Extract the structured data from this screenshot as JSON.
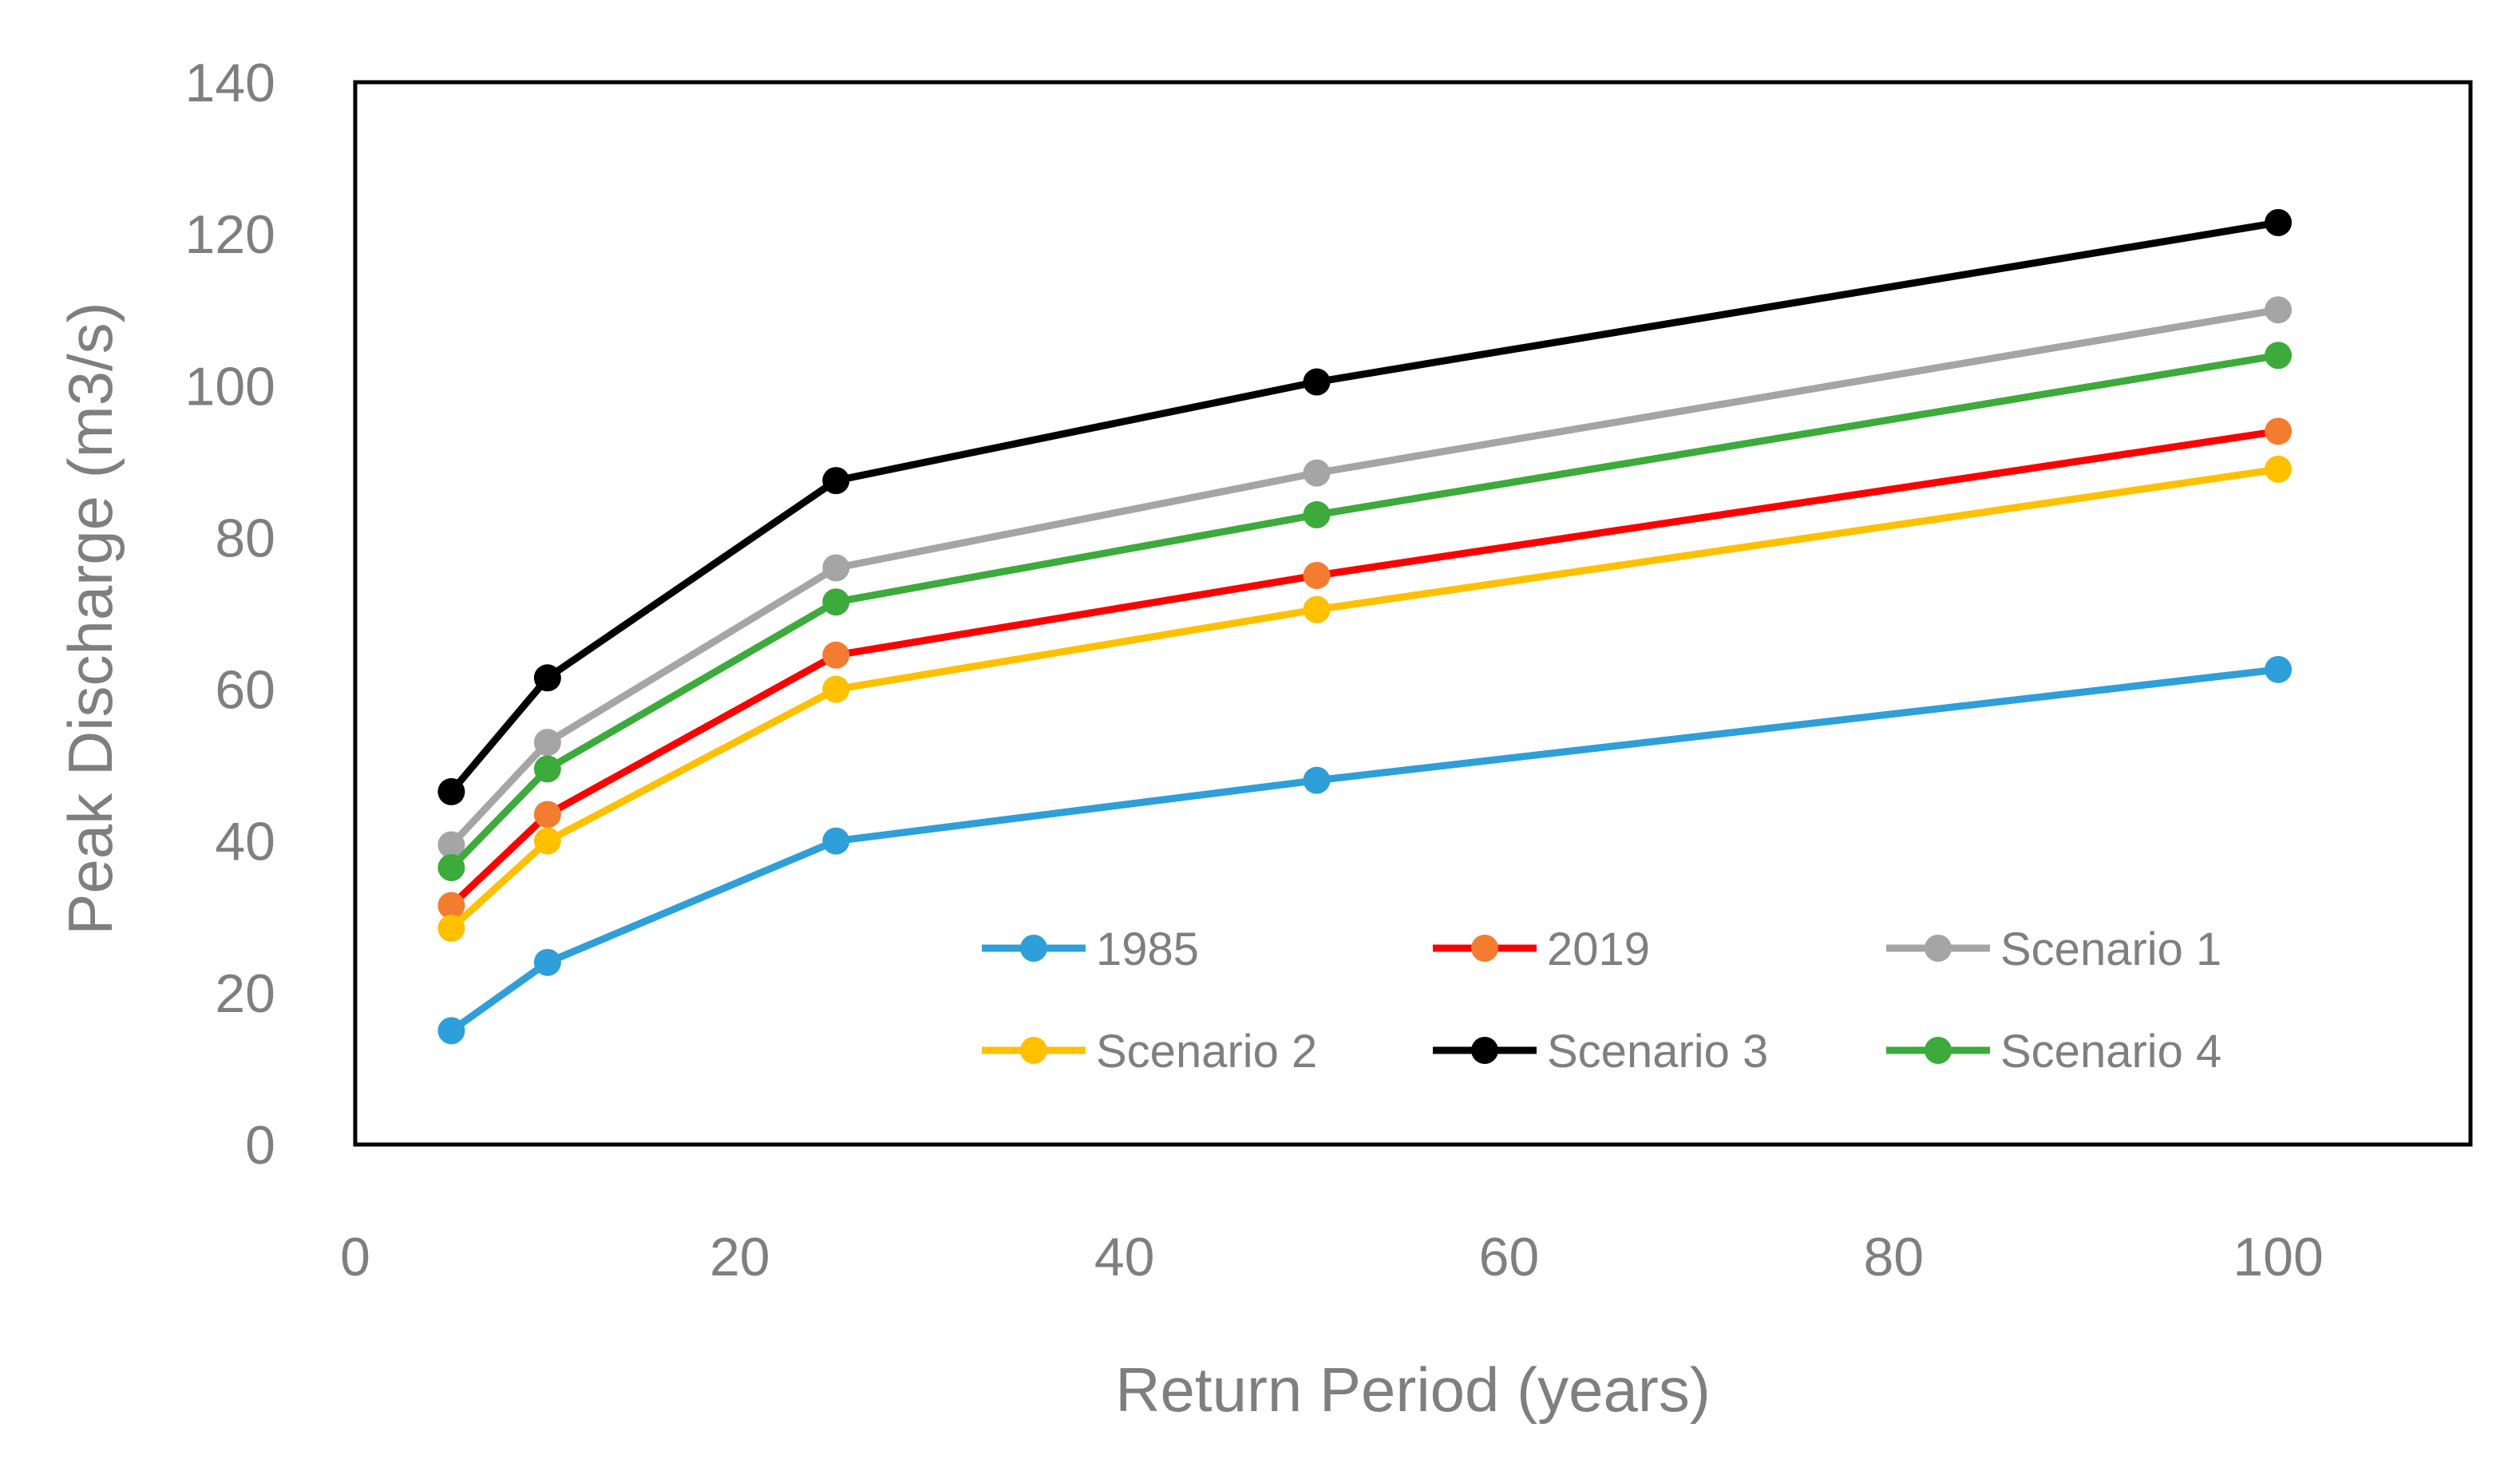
{
  "chart_data": {
    "type": "line",
    "title": "",
    "xlabel": "Return Period (years)",
    "ylabel": "Peak Discharge (m3/s)",
    "xlim": [
      0,
      110
    ],
    "ylim": [
      0,
      140
    ],
    "xticks": [
      0,
      20,
      40,
      60,
      80,
      100
    ],
    "yticks": [
      0,
      20,
      40,
      60,
      80,
      100,
      120,
      140
    ],
    "x": [
      5,
      10,
      25,
      50,
      100
    ],
    "grid": false,
    "legend_position": "bottom-right inside plot",
    "series": [
      {
        "name": "1985",
        "line_color": "#2e9fd9",
        "marker_color": "#2e9fd9",
        "values": [
          15.0,
          24.0,
          40.0,
          48.0,
          62.6
        ]
      },
      {
        "name": "2019",
        "line_color": "#ff0000",
        "marker_color": "#f47c30",
        "values": [
          31.5,
          43.5,
          64.5,
          75.0,
          94.0
        ]
      },
      {
        "name": "Scenario 1",
        "line_color": "#a5a5a5",
        "marker_color": "#a5a5a5",
        "values": [
          39.5,
          53.0,
          76.0,
          88.5,
          110.0
        ]
      },
      {
        "name": "Scenario 2",
        "line_color": "#ffc000",
        "marker_color": "#ffc000",
        "values": [
          28.5,
          40.0,
          60.0,
          70.5,
          89.0
        ]
      },
      {
        "name": "Scenario 3",
        "line_color": "#000000",
        "marker_color": "#000000",
        "values": [
          46.5,
          61.5,
          87.5,
          100.5,
          121.5
        ]
      },
      {
        "name": "Scenario 4",
        "line_color": "#3daa3c",
        "marker_color": "#3daa3c",
        "values": [
          36.5,
          49.5,
          71.5,
          83.0,
          104.0
        ]
      }
    ]
  }
}
